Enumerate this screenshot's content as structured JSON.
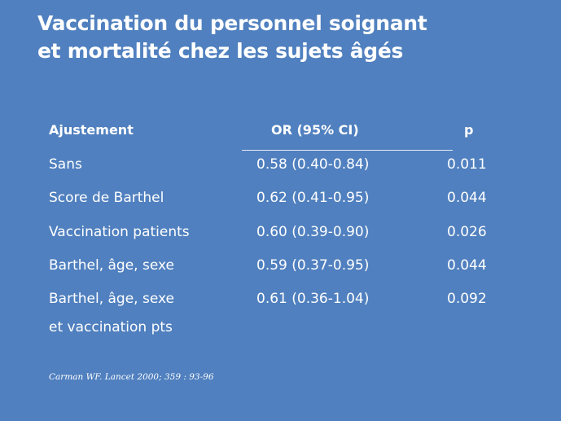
{
  "slide": {
    "title_line1": "Vaccination du personnel soignant",
    "title_line2": "et mortalité chez les sujets âgés"
  },
  "table": {
    "headers": {
      "adjustment": "Ajustement",
      "or": "OR (95% CI)",
      "p": "p"
    },
    "rows": [
      {
        "adjustment": "Sans",
        "or": "0.58 (0.40-0.84)",
        "p": "0.011"
      },
      {
        "adjustment": "Score de Barthel",
        "or": "0.62 (0.41-0.95)",
        "p": "0.044"
      },
      {
        "adjustment": "Vaccination patients",
        "or": "0.60 (0.39-0.90)",
        "p": "0.026"
      },
      {
        "adjustment": "Barthel, âge, sexe",
        "or": "0.59 (0.37-0.95)",
        "p": "0.044"
      },
      {
        "adjustment": "Barthel, âge, sexe",
        "adjustment_line2": "et vaccination pts",
        "or": "0.61 (0.36-1.04)",
        "p": "0.092"
      }
    ]
  },
  "source": "Carman WF. Lancet 2000; 359 : 93-96",
  "colors": {
    "background": "#5080bf",
    "text": "#ffffff"
  }
}
